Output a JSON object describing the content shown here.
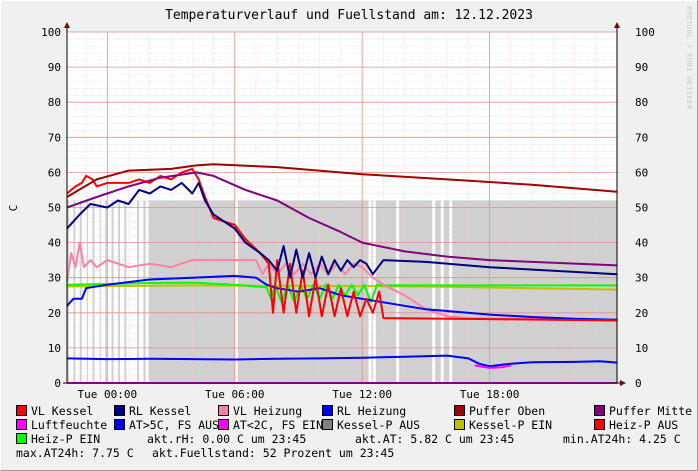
{
  "chart_data": {
    "type": "line",
    "title": "Temperaturverlauf und Fuellstand am: 12.12.2023",
    "ylabel": "C",
    "credit": "RRDTOOL / TOBI OETIKER",
    "ylim": [
      0,
      100
    ],
    "yticks": [
      "0",
      "10",
      "20",
      "30",
      "40",
      "50",
      "60",
      "70",
      "80",
      "90",
      "100"
    ],
    "xlim_hours": [
      -1.9,
      24
    ],
    "xticks": [
      {
        "h": 0,
        "label": "Tue 00:00"
      },
      {
        "h": 6,
        "label": "Tue 06:00"
      },
      {
        "h": 12,
        "label": "Tue 12:00"
      },
      {
        "h": 18,
        "label": "Tue 18:00"
      }
    ],
    "grid": true,
    "series": [
      {
        "name": "VL Kessel",
        "color": "#ff0000"
      },
      {
        "name": "RL Kessel",
        "color": "#000080"
      },
      {
        "name": "VL Heizung",
        "color": "#ff80a0"
      },
      {
        "name": "RL Heizung",
        "color": "#0000ff"
      },
      {
        "name": "Puffer Oben",
        "color": "#a00000"
      },
      {
        "name": "Puffer Mitte",
        "color": "#800080"
      },
      {
        "name": "Luftfeuchte",
        "color": "#ff00ff"
      },
      {
        "name": "AT>5C, FS AUS",
        "color": "#0000ff"
      },
      {
        "name": "AT<2C, FS EIN",
        "color": "#ff00ff"
      },
      {
        "name": "Kessel-P AUS",
        "color": "#808080"
      },
      {
        "name": "Kessel-P EIN",
        "color": "#c0c000"
      },
      {
        "name": "Heiz-P AUS",
        "color": "#ff0000"
      },
      {
        "name": "Heiz-P EIN",
        "color": "#00ff00"
      }
    ],
    "lines": {
      "puffer_oben": [
        [
          -1.9,
          53
        ],
        [
          -0.5,
          58
        ],
        [
          1,
          60.5
        ],
        [
          3,
          61
        ],
        [
          4.2,
          62
        ],
        [
          5,
          62.3
        ],
        [
          8,
          61.5
        ],
        [
          12,
          59.5
        ],
        [
          16,
          58
        ],
        [
          20,
          56.5
        ],
        [
          24,
          54.5
        ]
      ],
      "puffer_mitte": [
        [
          -1.9,
          50
        ],
        [
          -0.5,
          53
        ],
        [
          1,
          56
        ],
        [
          2.5,
          58.5
        ],
        [
          4.2,
          60
        ],
        [
          5,
          59
        ],
        [
          6.5,
          55
        ],
        [
          8,
          52
        ],
        [
          9.5,
          47
        ],
        [
          11,
          43
        ],
        [
          12,
          40
        ],
        [
          14,
          37.5
        ],
        [
          16,
          36
        ],
        [
          18,
          35
        ],
        [
          20,
          34.5
        ],
        [
          24,
          33.5
        ]
      ],
      "rl_kessel": [
        [
          -1.9,
          44
        ],
        [
          -1.3,
          48
        ],
        [
          -0.8,
          51
        ],
        [
          0,
          50
        ],
        [
          0.5,
          52
        ],
        [
          1,
          51
        ],
        [
          1.5,
          55
        ],
        [
          2,
          54
        ],
        [
          2.5,
          56
        ],
        [
          3,
          55
        ],
        [
          3.5,
          57
        ],
        [
          4,
          54
        ],
        [
          4.3,
          57
        ],
        [
          4.6,
          52
        ],
        [
          5,
          48
        ],
        [
          5.5,
          46
        ],
        [
          6,
          44
        ],
        [
          6.5,
          40
        ],
        [
          7.2,
          37
        ],
        [
          7.6,
          35
        ],
        [
          8,
          32
        ],
        [
          8.3,
          39
        ],
        [
          8.6,
          30
        ],
        [
          8.9,
          38
        ],
        [
          9.2,
          30
        ],
        [
          9.5,
          37
        ],
        [
          9.8,
          30
        ],
        [
          10.1,
          36
        ],
        [
          10.4,
          31
        ],
        [
          10.7,
          35
        ],
        [
          11,
          32
        ],
        [
          11.3,
          35
        ],
        [
          11.6,
          33
        ],
        [
          11.9,
          35
        ],
        [
          12.2,
          34
        ],
        [
          12.5,
          31
        ],
        [
          13,
          35
        ],
        [
          15,
          34.5
        ],
        [
          18,
          33
        ],
        [
          21,
          32
        ],
        [
          24,
          31
        ]
      ],
      "vl_kessel": [
        [
          -1.9,
          54
        ],
        [
          -1.5,
          56
        ],
        [
          -1.2,
          57
        ],
        [
          -1,
          59
        ],
        [
          -0.7,
          58
        ],
        [
          -0.5,
          56
        ],
        [
          0,
          57
        ],
        [
          1,
          57
        ],
        [
          1.5,
          58
        ],
        [
          2,
          57
        ],
        [
          2.5,
          59
        ],
        [
          3,
          58
        ],
        [
          3.5,
          60
        ],
        [
          4,
          61
        ],
        [
          4.3,
          58
        ],
        [
          4.6,
          53
        ],
        [
          5,
          47
        ],
        [
          6,
          45
        ],
        [
          6.5,
          41
        ],
        [
          7.2,
          37
        ],
        [
          7.6,
          34
        ],
        [
          7.8,
          20
        ],
        [
          8,
          35
        ],
        [
          8.3,
          20
        ],
        [
          8.6,
          34
        ],
        [
          8.9,
          20
        ],
        [
          9.2,
          32
        ],
        [
          9.5,
          19
        ],
        [
          9.8,
          30
        ],
        [
          10.1,
          19
        ],
        [
          10.4,
          28
        ],
        [
          10.7,
          19
        ],
        [
          11,
          27
        ],
        [
          11.3,
          19
        ],
        [
          11.6,
          26
        ],
        [
          11.9,
          19
        ],
        [
          12.2,
          24
        ],
        [
          12.5,
          20
        ],
        [
          12.8,
          26
        ],
        [
          13,
          18.5
        ],
        [
          18,
          18.2
        ],
        [
          24,
          17.8
        ]
      ],
      "vl_heizung": [
        [
          -1.9,
          29
        ],
        [
          -1.7,
          37
        ],
        [
          -1.5,
          33
        ],
        [
          -1.3,
          40
        ],
        [
          -1.1,
          33
        ],
        [
          -0.8,
          35
        ],
        [
          -0.5,
          33
        ],
        [
          0,
          35
        ],
        [
          1,
          33
        ],
        [
          2,
          34
        ],
        [
          3,
          33
        ],
        [
          4,
          35
        ],
        [
          5,
          35
        ],
        [
          6,
          35
        ],
        [
          7,
          35
        ],
        [
          7.3,
          31
        ],
        [
          7.6,
          34
        ],
        [
          8,
          31
        ],
        [
          8.4,
          34
        ],
        [
          8.8,
          31
        ],
        [
          9.2,
          34
        ],
        [
          9.6,
          31
        ],
        [
          10,
          34
        ],
        [
          10.4,
          31
        ],
        [
          10.8,
          34
        ],
        [
          11.2,
          31
        ],
        [
          11.6,
          34
        ],
        [
          12,
          33
        ],
        [
          12.5,
          30
        ],
        [
          13,
          28
        ],
        [
          14,
          25
        ],
        [
          15,
          21
        ],
        [
          16,
          19
        ],
        [
          17,
          18.5
        ],
        [
          24,
          18
        ]
      ],
      "rl_heizung": [
        [
          -1.9,
          22
        ],
        [
          -1.6,
          24
        ],
        [
          -1.2,
          24
        ],
        [
          -1,
          27
        ],
        [
          0,
          28
        ],
        [
          2,
          29.5
        ],
        [
          4,
          30
        ],
        [
          6,
          30.5
        ],
        [
          7,
          30
        ],
        [
          7.5,
          28
        ],
        [
          8,
          27
        ],
        [
          9,
          26
        ],
        [
          10,
          27
        ],
        [
          11,
          25
        ],
        [
          12,
          24
        ],
        [
          13,
          23
        ],
        [
          14,
          22
        ],
        [
          15,
          21
        ],
        [
          16,
          20.5
        ],
        [
          18,
          19.5
        ],
        [
          20,
          18.8
        ],
        [
          22,
          18.3
        ],
        [
          24,
          18
        ]
      ],
      "at_blue": [
        [
          -1.9,
          7
        ],
        [
          0,
          6.8
        ],
        [
          2,
          6.9
        ],
        [
          4,
          6.8
        ],
        [
          6,
          6.7
        ],
        [
          8,
          6.9
        ],
        [
          10,
          7
        ],
        [
          12,
          7.2
        ],
        [
          14,
          7.5
        ],
        [
          16,
          7.8
        ],
        [
          17,
          7
        ],
        [
          17.5,
          5.5
        ],
        [
          18,
          4.8
        ],
        [
          19,
          5.5
        ],
        [
          20,
          5.9
        ],
        [
          22,
          6
        ],
        [
          23.2,
          6.2
        ],
        [
          24,
          5.8
        ]
      ],
      "at_pink": [
        [
          17.3,
          5
        ],
        [
          18,
          4.3
        ],
        [
          18.6,
          4.5
        ],
        [
          19,
          5
        ]
      ],
      "kessel_p_yellow": [
        [
          -1.9,
          27.5
        ],
        [
          0,
          27.6
        ],
        [
          4,
          27.8
        ],
        [
          8,
          27.7
        ],
        [
          12,
          27.6
        ],
        [
          16,
          27.4
        ],
        [
          18,
          27.2
        ],
        [
          20,
          27
        ],
        [
          22,
          26.8
        ],
        [
          24,
          26.6
        ]
      ],
      "heiz_p_green": [
        [
          -1.9,
          28
        ],
        [
          0,
          28.2
        ],
        [
          2,
          28.5
        ],
        [
          4,
          28.6
        ],
        [
          6,
          28
        ],
        [
          7.5,
          27.3
        ],
        [
          7.7,
          24
        ],
        [
          7.9,
          28
        ],
        [
          8.2,
          23
        ],
        [
          8.5,
          28
        ],
        [
          8.8,
          23
        ],
        [
          9.1,
          28
        ],
        [
          9.4,
          24
        ],
        [
          9.7,
          28
        ],
        [
          10,
          24
        ],
        [
          10.3,
          28
        ],
        [
          10.6,
          24
        ],
        [
          10.9,
          28
        ],
        [
          11.2,
          25
        ],
        [
          11.5,
          28
        ],
        [
          11.8,
          25
        ],
        [
          12.1,
          28
        ],
        [
          12.4,
          23
        ],
        [
          12.7,
          28
        ],
        [
          13,
          27.8
        ],
        [
          14,
          27.8
        ],
        [
          24,
          27.8
        ]
      ],
      "luftfeuchte": [
        [
          -1.9,
          0
        ],
        [
          24,
          0
        ]
      ]
    },
    "fill_level": {
      "color": "#d0d0d0",
      "value": 52,
      "start_h": 1.7,
      "gaps_h": [
        -1.1,
        -0.5,
        0.3,
        1.1,
        1.8,
        6.0,
        12.3,
        12.5,
        13.6,
        15.3,
        15.7,
        16.1
      ]
    }
  },
  "legend": {
    "row1": [
      {
        "label": "VL Kessel",
        "color": "#ff0000"
      },
      {
        "label": "RL Kessel",
        "color": "#000080"
      },
      {
        "label": "VL Heizung",
        "color": "#ff80a0"
      },
      {
        "label": "RL Heizung",
        "color": "#0000ff"
      },
      {
        "label": "Puffer Oben",
        "color": "#a00000"
      },
      {
        "label": "Puffer Mitte",
        "color": "#800080"
      }
    ],
    "row2": [
      {
        "label": "Luftfeuchte",
        "color": "#ff00ff"
      },
      {
        "label": "AT>5C, FS AUS",
        "color": "#0000ff"
      },
      {
        "label": "AT<2C, FS EIN",
        "color": "#ff00ff"
      },
      {
        "label": "Kessel-P AUS",
        "color": "#808080"
      },
      {
        "label": "Kessel-P EIN",
        "color": "#c0c000"
      },
      {
        "label": "Heiz-P AUS",
        "color": "#ff0000"
      }
    ],
    "row3_item": {
      "label": "Heiz-P EIN",
      "color": "#00ff00"
    },
    "stat_rh": "akt.rH: 0.00 C um 23:45",
    "stat_at": "akt.AT: 5.82 C um 23:45",
    "stat_min": "min.AT24h: 4.25 C",
    "stat_max": "max.AT24h: 7.75 C",
    "stat_fill": "akt.Fuellstand:   52 Prozent um 23:45"
  }
}
